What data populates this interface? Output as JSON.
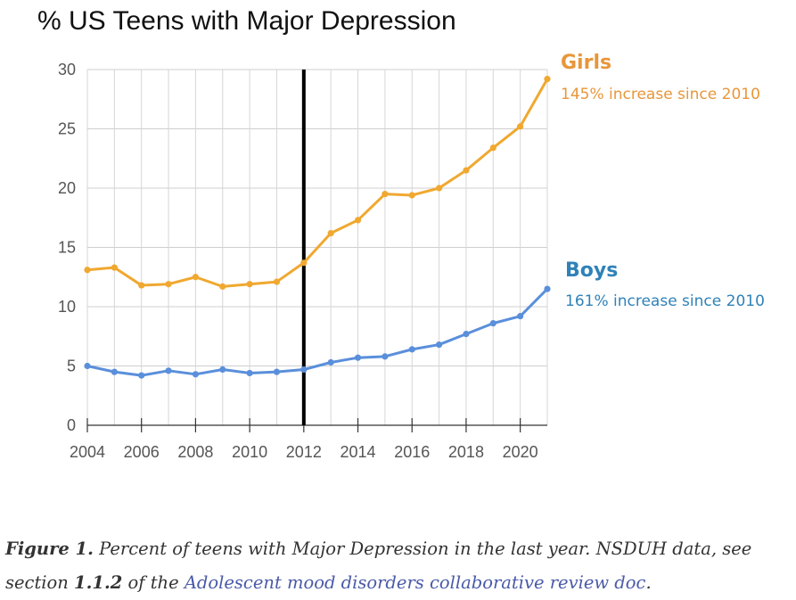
{
  "chart_data": {
    "type": "line",
    "title": "% US Teens with Major Depression",
    "x": [
      2004,
      2005,
      2006,
      2007,
      2008,
      2009,
      2010,
      2011,
      2012,
      2013,
      2014,
      2015,
      2016,
      2017,
      2018,
      2019,
      2020,
      2021
    ],
    "x_ticks": [
      "2004",
      "2006",
      "2008",
      "2010",
      "2012",
      "2014",
      "2016",
      "2018",
      "2020"
    ],
    "y_ticks": [
      "0",
      "5",
      "10",
      "15",
      "20",
      "25",
      "30"
    ],
    "xlim": [
      2004,
      2021
    ],
    "ylim": [
      0,
      30
    ],
    "grid": "horizontal and vertical",
    "vertical_marker_x": 2012,
    "series": [
      {
        "name": "Girls",
        "note": "145% increase since 2010",
        "color": "#f0a830",
        "label_color": "#e8963a",
        "values": [
          13.1,
          13.3,
          11.8,
          11.9,
          12.5,
          11.7,
          11.9,
          12.1,
          13.7,
          16.2,
          17.3,
          19.5,
          19.4,
          20.0,
          21.5,
          23.4,
          25.2,
          29.2
        ]
      },
      {
        "name": "Boys",
        "note": "161% increase since 2010",
        "color": "#5a8fdb",
        "label_color": "#2f82b8",
        "values": [
          5.0,
          4.5,
          4.2,
          4.6,
          4.3,
          4.7,
          4.4,
          4.5,
          4.7,
          5.3,
          5.7,
          5.8,
          6.4,
          6.8,
          7.7,
          8.6,
          9.2,
          11.5
        ]
      }
    ]
  },
  "caption": {
    "figure_label": "Figure 1.",
    "text_a": " Percent of teens with Major Depression in the last year. NSDUH data, see section ",
    "section": "1.1.2",
    "text_b": " of the ",
    "link_text": "Adolescent mood disorders collaborative review doc",
    "text_c": "."
  }
}
